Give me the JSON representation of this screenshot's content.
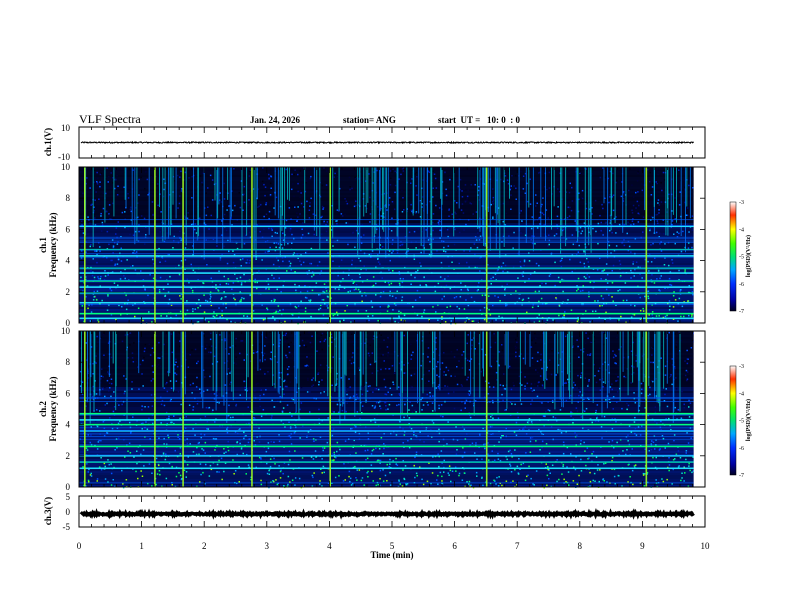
{
  "header": {
    "title": "VLF Spectra",
    "date": "Jan. 24, 2026",
    "station": "station= ANG",
    "start": "start  UT =   10: 0  : 0"
  },
  "chart_data": [
    {
      "type": "line",
      "id": "ch1-waveform",
      "ylabel": "ch.1(V)",
      "ylim": [
        -10,
        10
      ],
      "y_tick_labels": [
        "10",
        "-10"
      ],
      "trace_mean": 0,
      "trace_amplitude": 0.4
    },
    {
      "type": "heatmap",
      "id": "ch1-spectrogram",
      "ylabel_top": "ch.1",
      "ylabel": "Frequency (kHz)",
      "ylim": [
        0,
        10
      ],
      "y_tick_labels": [
        "0",
        "2",
        "4",
        "6",
        "8",
        "10"
      ],
      "colorbar": {
        "label": "log(PSD)(V²/Hz)",
        "range": [
          -7,
          -3
        ],
        "tick_labels": [
          "-3",
          "-4",
          "-5",
          "-6",
          "-7"
        ]
      },
      "strong_lines_khz": [
        0.3,
        0.6,
        1.3,
        1.9,
        2.3,
        2.7,
        3.2,
        3.5,
        4.3,
        4.7,
        6.2
      ],
      "intense_impulses_min": [
        0.08,
        1.2,
        1.65,
        2.75,
        4.0,
        6.5,
        9.05
      ]
    },
    {
      "type": "heatmap",
      "id": "ch2-spectrogram",
      "ylabel_top": "ch.2",
      "ylabel": "Frequency (kHz)",
      "ylim": [
        0,
        10
      ],
      "y_tick_labels": [
        "0",
        "2",
        "4",
        "6",
        "8",
        "10"
      ],
      "colorbar": {
        "label": "log(PSD)(V²/Hz)",
        "range": [
          -7,
          -3
        ],
        "tick_labels": [
          "-3",
          "-4",
          "-5",
          "-6",
          "-7"
        ]
      },
      "strong_lines_khz": [
        1.2,
        1.6,
        2.0,
        2.6,
        3.6,
        4.0,
        4.3,
        4.7
      ],
      "intense_impulses_min": [
        0.08,
        1.2,
        1.65,
        2.75,
        4.0,
        6.5,
        9.05
      ]
    },
    {
      "type": "line",
      "id": "ch3-waveform",
      "ylabel": "ch.3(V)",
      "ylim": [
        -5,
        5
      ],
      "y_tick_labels": [
        "5",
        "0",
        "-5"
      ],
      "trace_mean": -0.8,
      "trace_amplitude": 0.25
    }
  ],
  "x_axis": {
    "label": "Time (min)",
    "range": [
      0,
      10
    ],
    "data_end": 9.82,
    "tick_labels": [
      "0",
      "1",
      "2",
      "3",
      "4",
      "5",
      "6",
      "7",
      "8",
      "9",
      "10"
    ]
  }
}
